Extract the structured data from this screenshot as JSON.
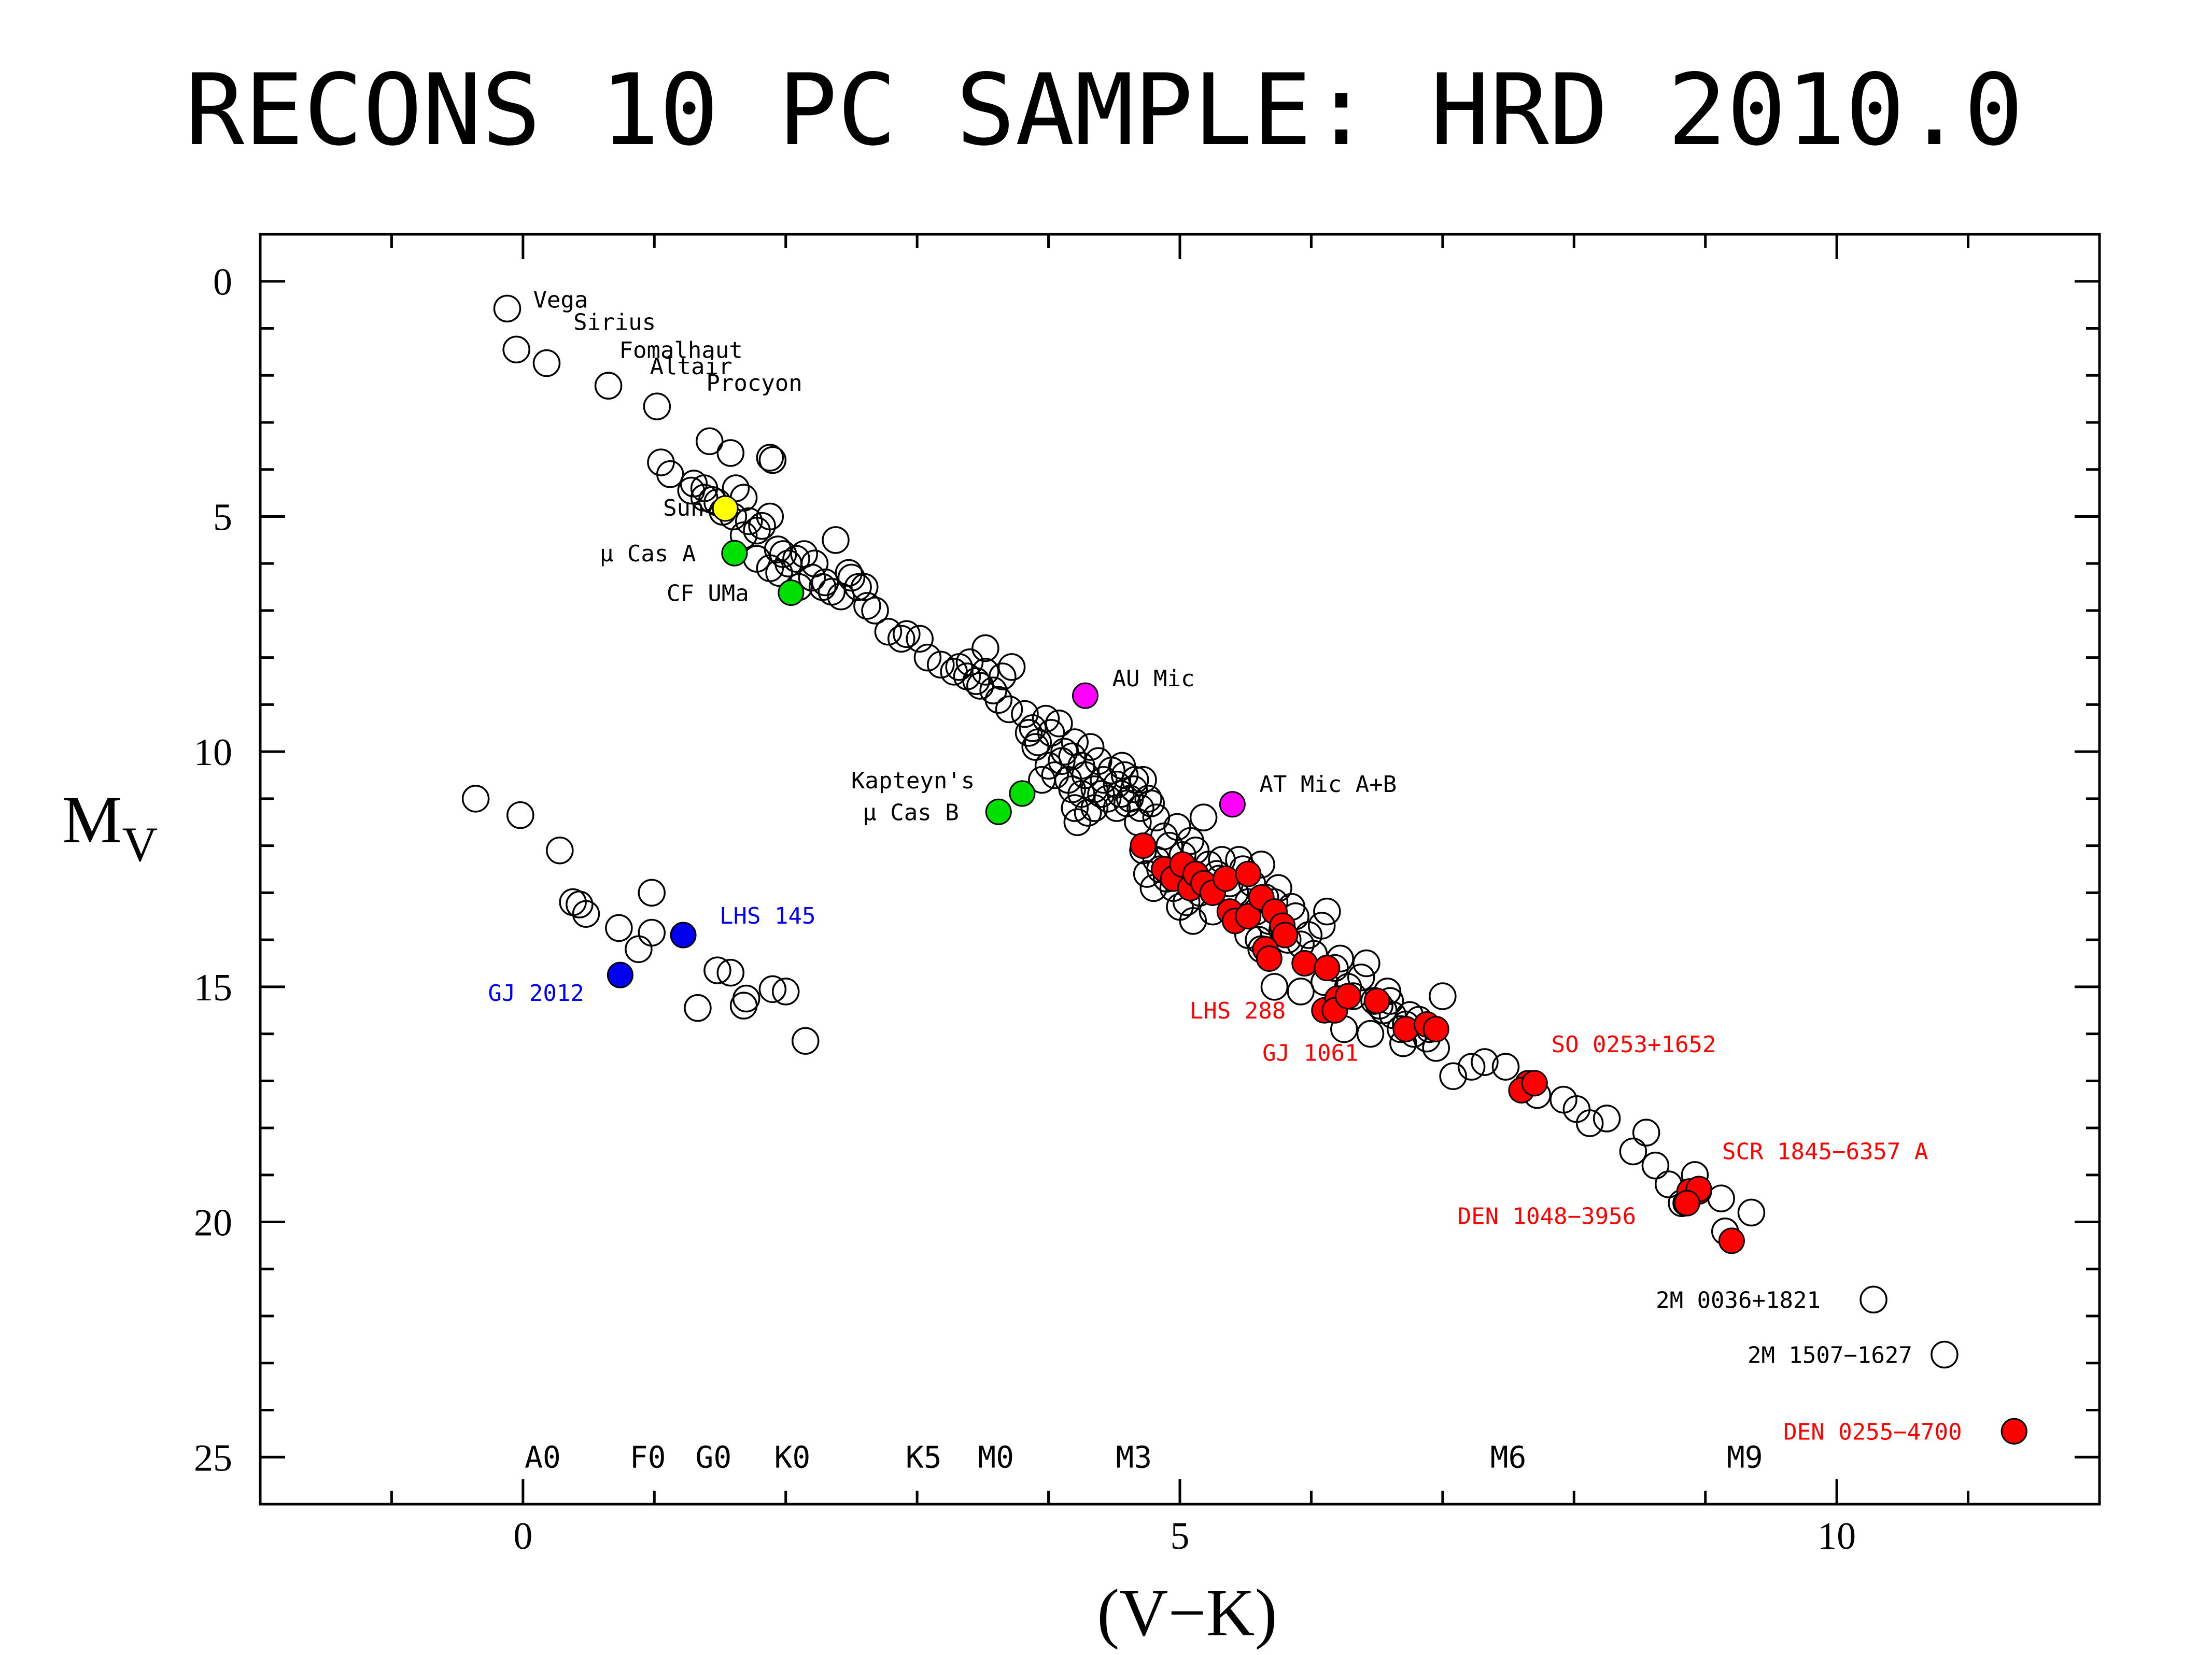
{
  "chart_data": {
    "type": "scatter",
    "title": "RECONS 10 PC SAMPLE: HRD 2010.0",
    "xlabel": "(V−K)",
    "ylabel": "M",
    "ylabel_sub": "V",
    "xlim": [
      -2.0,
      12.0
    ],
    "ylim": [
      -1.0,
      26.0
    ],
    "y_inverted": true,
    "x_major_ticks": [
      0,
      5,
      10
    ],
    "x_tick_labels": [
      "0",
      "5",
      "10"
    ],
    "y_major_ticks": [
      0,
      5,
      10,
      15,
      20,
      25
    ],
    "y_tick_labels": [
      "0",
      "5",
      "10",
      "15",
      "20",
      "25"
    ],
    "grid": false,
    "legend": "none",
    "colors": {
      "open": "#000000",
      "sun": "#ffff00",
      "green": "#00e000",
      "magenta": "#ff00ff",
      "blue": "#0000ee",
      "red": "#ff0000"
    },
    "spectral_types": [
      {
        "label": "A0",
        "x": 0.15
      },
      {
        "label": "F0",
        "x": 0.95
      },
      {
        "label": "G0",
        "x": 1.45
      },
      {
        "label": "K0",
        "x": 2.05
      },
      {
        "label": "K5",
        "x": 3.05
      },
      {
        "label": "M0",
        "x": 3.6
      },
      {
        "label": "M3",
        "x": 4.65
      },
      {
        "label": "M6",
        "x": 7.5
      },
      {
        "label": "M9",
        "x": 9.3
      }
    ],
    "spectral_y": 25.0,
    "named_stars": [
      {
        "label": "Vega",
        "x": -0.12,
        "y": 0.58,
        "color": "open",
        "text_color": "#000000"
      },
      {
        "label": "Sirius",
        "x": -0.05,
        "y": 1.45,
        "color": "open",
        "text_color": "#000000"
      },
      {
        "label": "Fomalhaut",
        "x": 0.18,
        "y": 1.74,
        "color": "open",
        "text_color": "#000000"
      },
      {
        "label": "Altair",
        "x": 0.65,
        "y": 2.22,
        "color": "open",
        "text_color": "#000000"
      },
      {
        "label": "Procyon",
        "x": 1.02,
        "y": 2.66,
        "color": "open",
        "text_color": "#000000"
      },
      {
        "label": "Sun",
        "x": 1.54,
        "y": 4.83,
        "color": "sun",
        "text_color": "#000000"
      },
      {
        "label": "μ Cas A",
        "x": 1.61,
        "y": 5.78,
        "color": "green",
        "text_color": "#000000"
      },
      {
        "label": "CF UMa",
        "x": 2.04,
        "y": 6.62,
        "color": "green",
        "text_color": "#000000"
      },
      {
        "label": "AU Mic",
        "x": 4.28,
        "y": 8.81,
        "color": "magenta",
        "text_color": "#000000"
      },
      {
        "label": "AT Mic A+B",
        "x": 5.4,
        "y": 11.12,
        "color": "magenta",
        "text_color": "#000000"
      },
      {
        "label": "Kapteyn's",
        "x": 3.8,
        "y": 10.89,
        "color": "green",
        "text_color": "#000000"
      },
      {
        "label": "μ Cas B",
        "x": 3.62,
        "y": 11.28,
        "color": "green",
        "text_color": "#000000"
      },
      {
        "label": "LHS 145",
        "x": 1.22,
        "y": 13.9,
        "color": "blue",
        "text_color": "#0000ee"
      },
      {
        "label": "GJ 2012",
        "x": 0.74,
        "y": 14.75,
        "color": "blue",
        "text_color": "#0000ee"
      },
      {
        "label": "LHS 288",
        "x": 6.1,
        "y": 15.5,
        "color": "red",
        "text_color": "#ff0000"
      },
      {
        "label": "GJ 1061",
        "x": 6.2,
        "y": 15.25,
        "color": "red",
        "text_color": "#ff0000"
      },
      {
        "label": "SO 0253+1652",
        "x": 7.65,
        "y": 17.05,
        "color": "red",
        "text_color": "#ff0000"
      },
      {
        "label": "SCR 1845−6357 A",
        "x": 8.95,
        "y": 19.35,
        "color": "red",
        "text_color": "#ff0000"
      },
      {
        "label": "DEN 1048−3956",
        "x": 8.85,
        "y": 19.6,
        "color": "red",
        "text_color": "#ff0000"
      },
      {
        "label": "2M 0036+1821",
        "x": 10.28,
        "y": 21.65,
        "color": "open",
        "text_color": "#000000"
      },
      {
        "label": "2M 1507−1627",
        "x": 10.82,
        "y": 22.82,
        "color": "open",
        "text_color": "#000000"
      },
      {
        "label": "DEN 0255−4700",
        "x": 11.35,
        "y": 24.45,
        "color": "red",
        "text_color": "#ff0000"
      }
    ],
    "open_points": [
      [
        -0.36,
        11.0
      ],
      [
        -0.02,
        11.35
      ],
      [
        0.28,
        12.1
      ],
      [
        0.38,
        13.2
      ],
      [
        0.48,
        13.45
      ],
      [
        0.43,
        13.25
      ],
      [
        0.73,
        13.75
      ],
      [
        0.88,
        14.2
      ],
      [
        0.98,
        13.85
      ],
      [
        0.98,
        13.0
      ],
      [
        1.48,
        14.65
      ],
      [
        1.58,
        14.7
      ],
      [
        1.68,
        15.4
      ],
      [
        1.7,
        15.25
      ],
      [
        1.33,
        15.45
      ],
      [
        1.9,
        15.05
      ],
      [
        2.0,
        15.1
      ],
      [
        2.15,
        16.15
      ],
      [
        1.05,
        3.85
      ],
      [
        1.12,
        4.1
      ],
      [
        1.28,
        4.45
      ],
      [
        1.38,
        4.6
      ],
      [
        1.44,
        4.65
      ],
      [
        1.52,
        4.9
      ],
      [
        1.62,
        4.4
      ],
      [
        1.68,
        4.6
      ],
      [
        1.72,
        5.1
      ],
      [
        1.78,
        5.3
      ],
      [
        1.82,
        5.2
      ],
      [
        1.88,
        5.0
      ],
      [
        1.94,
        5.7
      ],
      [
        1.98,
        5.8
      ],
      [
        2.02,
        6.0
      ],
      [
        2.08,
        5.9
      ],
      [
        2.14,
        5.8
      ],
      [
        2.2,
        6.3
      ],
      [
        2.28,
        6.5
      ],
      [
        2.35,
        6.6
      ],
      [
        2.42,
        6.7
      ],
      [
        2.48,
        6.2
      ],
      [
        2.55,
        6.5
      ],
      [
        2.62,
        6.9
      ],
      [
        2.38,
        5.5
      ],
      [
        1.42,
        3.4
      ],
      [
        1.58,
        3.65
      ],
      [
        1.88,
        3.75
      ],
      [
        1.9,
        3.8
      ],
      [
        1.95,
        6.2
      ],
      [
        2.5,
        6.3
      ],
      [
        2.78,
        7.45
      ],
      [
        2.92,
        7.5
      ],
      [
        3.02,
        7.6
      ],
      [
        3.08,
        8.0
      ],
      [
        3.18,
        8.15
      ],
      [
        3.32,
        8.2
      ],
      [
        3.38,
        8.4
      ],
      [
        3.48,
        8.6
      ],
      [
        3.52,
        8.3
      ],
      [
        3.58,
        8.7
      ],
      [
        3.62,
        8.9
      ],
      [
        3.72,
        8.2
      ],
      [
        3.52,
        7.8
      ],
      [
        3.82,
        9.2
      ],
      [
        3.88,
        9.5
      ],
      [
        3.92,
        9.8
      ],
      [
        3.98,
        9.3
      ],
      [
        4.02,
        9.6
      ],
      [
        4.08,
        9.4
      ],
      [
        4.12,
        10.0
      ],
      [
        4.18,
        10.1
      ],
      [
        4.2,
        9.8
      ],
      [
        4.25,
        10.3
      ],
      [
        4.28,
        10.5
      ],
      [
        4.32,
        9.9
      ],
      [
        4.38,
        10.2
      ],
      [
        4.42,
        10.6
      ],
      [
        4.48,
        10.4
      ],
      [
        4.52,
        10.7
      ],
      [
        4.55,
        10.9
      ],
      [
        4.58,
        10.5
      ],
      [
        4.62,
        11.0
      ],
      [
        4.65,
        10.8
      ],
      [
        4.7,
        11.2
      ],
      [
        4.72,
        10.6
      ],
      [
        4.78,
        11.1
      ],
      [
        4.82,
        11.4
      ],
      [
        4.68,
        11.5
      ],
      [
        4.6,
        11.1
      ],
      [
        4.35,
        11.2
      ],
      [
        4.22,
        11.5
      ],
      [
        4.18,
        10.8
      ],
      [
        4.05,
        10.5
      ],
      [
        3.95,
        10.6
      ],
      [
        4.88,
        11.8
      ],
      [
        4.92,
        12.0
      ],
      [
        4.98,
        11.6
      ],
      [
        5.02,
        12.2
      ],
      [
        5.08,
        11.9
      ],
      [
        5.12,
        12.1
      ],
      [
        5.18,
        11.4
      ],
      [
        5.22,
        12.4
      ],
      [
        5.28,
        12.6
      ],
      [
        5.32,
        12.3
      ],
      [
        5.38,
        12.8
      ],
      [
        5.42,
        13.0
      ],
      [
        5.48,
        12.5
      ],
      [
        5.52,
        13.2
      ],
      [
        5.58,
        13.4
      ],
      [
        5.62,
        12.4
      ],
      [
        5.68,
        13.6
      ],
      [
        5.72,
        13.2
      ],
      [
        5.78,
        13.8
      ],
      [
        5.82,
        14.0
      ],
      [
        5.88,
        13.5
      ],
      [
        5.92,
        14.1
      ],
      [
        5.98,
        13.9
      ],
      [
        6.02,
        14.3
      ],
      [
        6.08,
        13.7
      ],
      [
        6.12,
        13.4
      ],
      [
        6.18,
        14.6
      ],
      [
        6.22,
        14.4
      ],
      [
        6.28,
        15.0
      ],
      [
        6.32,
        15.2
      ],
      [
        6.38,
        14.8
      ],
      [
        6.42,
        14.5
      ],
      [
        6.48,
        15.3
      ],
      [
        6.52,
        15.4
      ],
      [
        6.58,
        15.1
      ],
      [
        6.62,
        15.6
      ],
      [
        6.68,
        15.9
      ],
      [
        6.72,
        15.8
      ],
      [
        6.78,
        16.0
      ],
      [
        6.82,
        15.7
      ],
      [
        6.88,
        16.1
      ],
      [
        6.95,
        16.3
      ],
      [
        7.0,
        15.2
      ],
      [
        7.08,
        16.9
      ],
      [
        7.22,
        16.7
      ],
      [
        7.32,
        16.6
      ],
      [
        7.48,
        16.7
      ],
      [
        7.72,
        17.3
      ],
      [
        7.92,
        17.4
      ],
      [
        8.02,
        17.6
      ],
      [
        8.12,
        17.9
      ],
      [
        8.25,
        17.8
      ],
      [
        8.45,
        18.5
      ],
      [
        8.55,
        18.1
      ],
      [
        8.62,
        18.8
      ],
      [
        8.72,
        19.2
      ],
      [
        8.82,
        19.6
      ],
      [
        8.92,
        19.0
      ],
      [
        9.12,
        19.5
      ],
      [
        9.15,
        20.2
      ],
      [
        9.35,
        19.8
      ],
      [
        4.82,
        12.3
      ],
      [
        4.72,
        12.1
      ],
      [
        4.9,
        12.7
      ],
      [
        5.0,
        13.3
      ],
      [
        5.1,
        13.6
      ],
      [
        5.15,
        13.0
      ],
      [
        5.25,
        13.4
      ],
      [
        5.3,
        12.7
      ],
      [
        5.6,
        14.0
      ],
      [
        5.72,
        15.0
      ],
      [
        5.92,
        15.1
      ],
      [
        6.1,
        14.9
      ],
      [
        6.25,
        15.9
      ],
      [
        6.45,
        16.0
      ],
      [
        6.55,
        15.5
      ],
      [
        6.7,
        16.2
      ],
      [
        4.52,
        11.2
      ],
      [
        4.45,
        11.0
      ],
      [
        4.35,
        10.8
      ],
      [
        4.3,
        11.3
      ],
      [
        4.1,
        10.2
      ],
      [
        4.15,
        10.6
      ],
      [
        3.9,
        9.9
      ],
      [
        4.0,
        10.3
      ],
      [
        3.85,
        9.6
      ],
      [
        3.7,
        9.1
      ],
      [
        3.65,
        8.4
      ],
      [
        3.4,
        8.1
      ],
      [
        3.45,
        8.5
      ],
      [
        3.28,
        8.3
      ],
      [
        2.88,
        7.6
      ],
      [
        2.68,
        7.0
      ],
      [
        2.6,
        6.5
      ],
      [
        2.3,
        6.4
      ],
      [
        2.22,
        6.0
      ],
      [
        2.1,
        6.5
      ],
      [
        1.88,
        6.1
      ],
      [
        1.78,
        5.9
      ],
      [
        1.68,
        5.4
      ],
      [
        1.6,
        5.0
      ],
      [
        1.48,
        4.7
      ],
      [
        1.38,
        4.4
      ],
      [
        1.3,
        4.3
      ],
      [
        4.56,
        10.3
      ],
      [
        4.66,
        10.6
      ],
      [
        4.76,
        11.0
      ],
      [
        4.4,
        10.9
      ],
      [
        4.25,
        10.9
      ],
      [
        4.2,
        11.2
      ],
      [
        5.45,
        12.3
      ],
      [
        5.55,
        12.8
      ],
      [
        5.65,
        13.1
      ],
      [
        5.75,
        12.9
      ],
      [
        5.85,
        13.3
      ],
      [
        4.95,
        12.9
      ],
      [
        5.05,
        13.2
      ],
      [
        4.85,
        12.5
      ],
      [
        4.75,
        12.6
      ],
      [
        4.8,
        12.9
      ],
      [
        6.6,
        15.3
      ],
      [
        6.75,
        15.6
      ],
      [
        6.9,
        15.9
      ],
      [
        5.52,
        13.9
      ],
      [
        5.62,
        14.2
      ]
    ],
    "red_points": [
      [
        4.72,
        12.0
      ],
      [
        4.88,
        12.5
      ],
      [
        4.95,
        12.7
      ],
      [
        5.02,
        12.4
      ],
      [
        5.08,
        12.9
      ],
      [
        5.12,
        12.6
      ],
      [
        5.18,
        12.8
      ],
      [
        5.25,
        13.0
      ],
      [
        5.35,
        12.7
      ],
      [
        5.52,
        12.6
      ],
      [
        5.38,
        13.4
      ],
      [
        5.42,
        13.6
      ],
      [
        5.52,
        13.5
      ],
      [
        5.62,
        13.1
      ],
      [
        5.72,
        13.4
      ],
      [
        5.78,
        13.7
      ],
      [
        5.8,
        13.9
      ],
      [
        5.65,
        14.2
      ],
      [
        5.68,
        14.4
      ],
      [
        5.95,
        14.5
      ],
      [
        6.12,
        14.6
      ],
      [
        6.18,
        15.5
      ],
      [
        6.28,
        15.2
      ],
      [
        6.5,
        15.3
      ],
      [
        6.72,
        15.9
      ],
      [
        6.88,
        15.8
      ],
      [
        6.95,
        15.9
      ],
      [
        7.6,
        17.2
      ],
      [
        7.7,
        17.05
      ],
      [
        8.88,
        19.35
      ],
      [
        8.95,
        19.3
      ],
      [
        8.86,
        19.6
      ],
      [
        9.2,
        20.4
      ],
      [
        11.35,
        24.45
      ]
    ]
  }
}
